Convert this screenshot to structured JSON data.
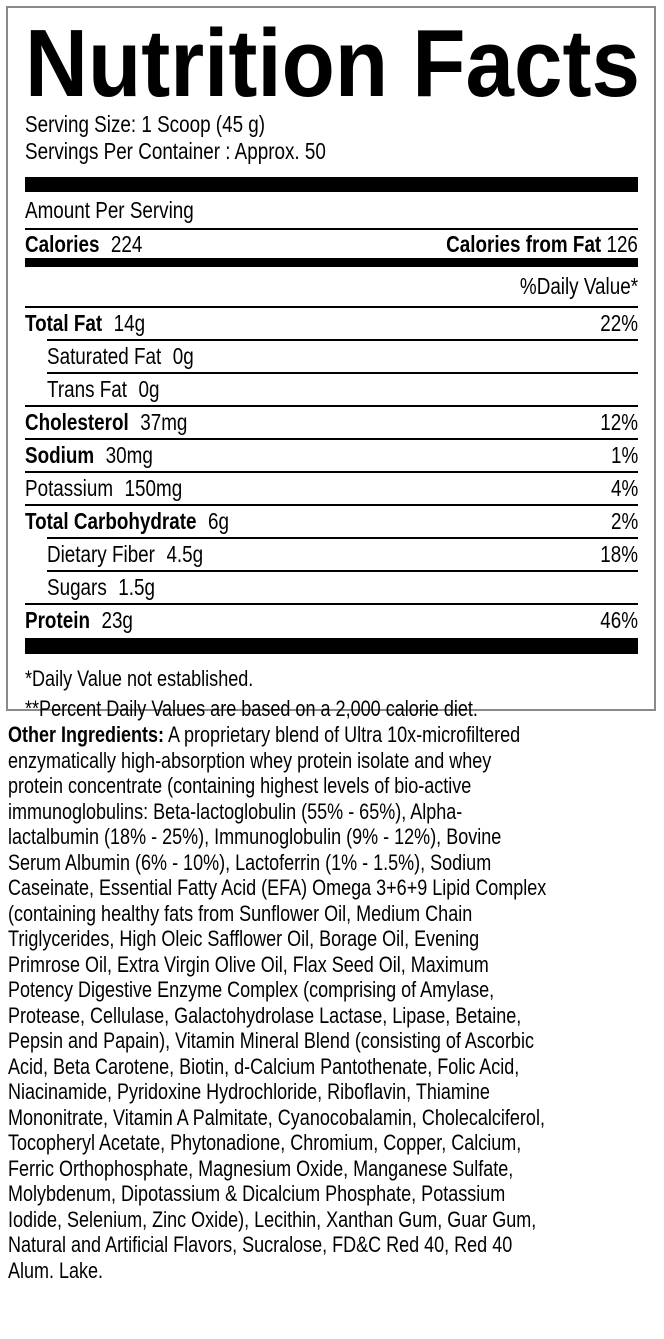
{
  "label": {
    "title": "Nutrition Facts",
    "serving_size": "Serving Size: 1 Scoop (45 g)",
    "servings_per_container": "Servings Per Container : Approx. 50",
    "amount_per_serving": "Amount Per Serving",
    "calories_label": "Calories",
    "calories_value": "224",
    "calories_from_fat_label": "Calories from Fat",
    "calories_from_fat_value": "126",
    "daily_value_header": "%Daily Value*",
    "nutrients": [
      {
        "name": "Total Fat",
        "amount": "14g",
        "dv": "22%"
      },
      {
        "name": "Saturated Fat",
        "amount": "0g",
        "dv": ""
      },
      {
        "name": "Trans Fat",
        "amount": "0g",
        "dv": ""
      },
      {
        "name": "Cholesterol",
        "amount": "37mg",
        "dv": "12%"
      },
      {
        "name": "Sodium",
        "amount": "30mg",
        "dv": "1%"
      },
      {
        "name": "Potassium",
        "amount": "150mg",
        "dv": "4%"
      },
      {
        "name": "Total Carbohydrate",
        "amount": "6g",
        "dv": "2%"
      },
      {
        "name": "Dietary Fiber",
        "amount": "4.5g",
        "dv": "18%"
      },
      {
        "name": "Sugars",
        "amount": "1.5g",
        "dv": ""
      },
      {
        "name": "Protein",
        "amount": "23g",
        "dv": "46%"
      }
    ],
    "footnotes": [
      "*Daily Value not established.",
      "**Percent Daily Values are based on a 2,000 calorie diet."
    ]
  },
  "ingredients": {
    "heading": "Other Ingredients:",
    "lines": [
      " A proprietary blend of Ultra 10x-microfiltered",
      "enzymatically high-absorption whey protein isolate and whey",
      "protein concentrate (containing highest levels of bio-active",
      "immunoglobulins: Beta-lactoglobulin (55% - 65%), Alpha-",
      "lactalbumin (18% - 25%), Immunoglobulin (9% - 12%), Bovine",
      "Serum Albumin (6% - 10%), Lactoferrin (1% - 1.5%), Sodium",
      "Caseinate, Essential Fatty Acid (EFA) Omega 3+6+9 Lipid Complex",
      "(containing healthy fats from Sunflower Oil, Medium Chain",
      "Triglycerides, High Oleic Safflower Oil, Borage Oil, Evening",
      "Primrose Oil, Extra Virgin Olive Oil, Flax Seed Oil, Maximum",
      "Potency Digestive Enzyme Complex (comprising of Amylase,",
      "Protease, Cellulase, Galactohydrolase Lactase, Lipase, Betaine,",
      "Pepsin and Papain), Vitamin Mineral Blend (consisting of Ascorbic",
      "Acid, Beta Carotene, Biotin, d-Calcium Pantothenate, Folic Acid,",
      "Niacinamide, Pyridoxine Hydrochloride, Riboflavin, Thiamine",
      "Mononitrate, Vitamin A Palmitate, Cyanocobalamin, Cholecalciferol,",
      "Tocopheryl Acetate, Phytonadione, Chromium, Copper, Calcium,",
      "Ferric Orthophosphate, Magnesium Oxide, Manganese Sulfate,",
      "Molybdenum, Dipotassium & Dicalcium Phosphate, Potassium",
      "Iodide, Selenium, Zinc Oxide), Lecithin, Xanthan Gum, Guar Gum,",
      "Natural and Artificial Flavors, Sucralose, FD&C Red 40, Red 40",
      "Alum. Lake."
    ]
  }
}
